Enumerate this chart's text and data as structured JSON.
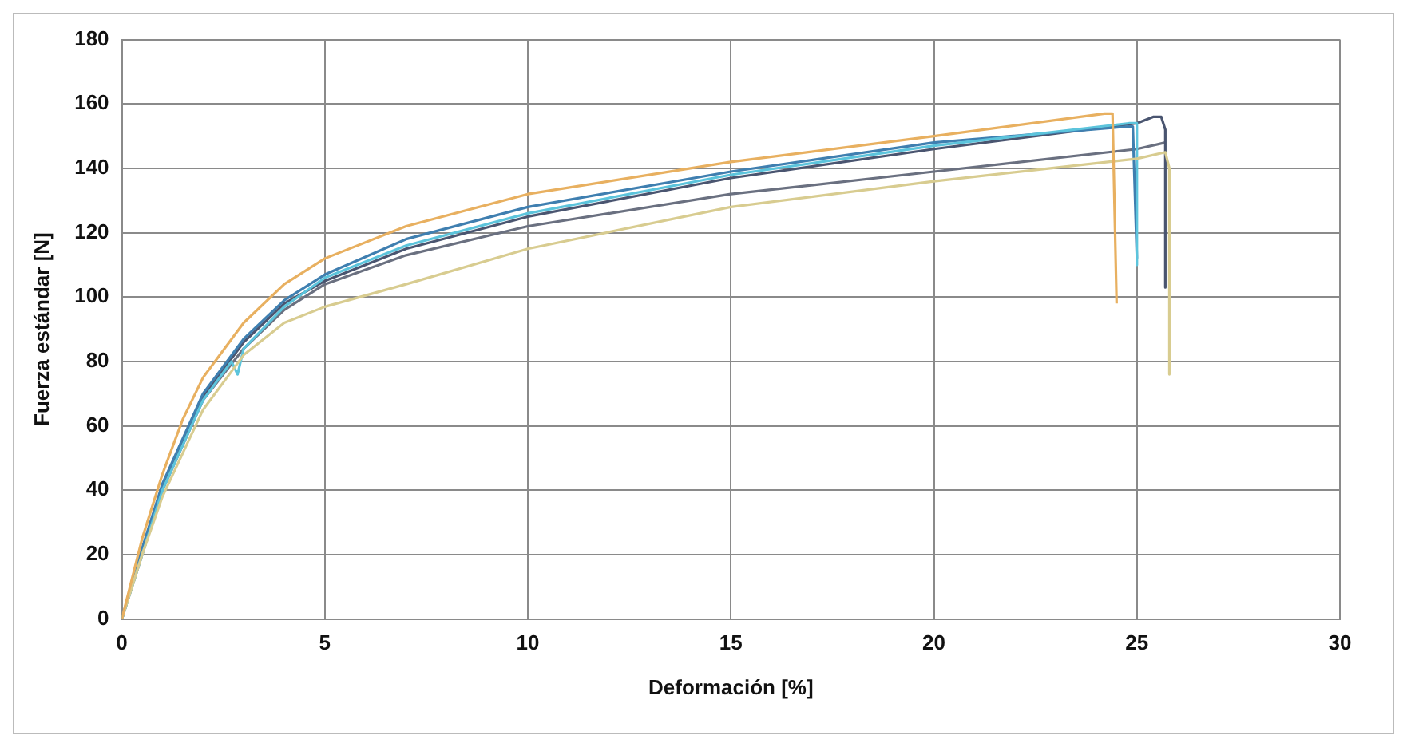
{
  "chart_data": {
    "type": "line",
    "xlabel": "Deformación [%]",
    "ylabel": "Fuerza estándar [N]",
    "xlim": [
      0,
      30
    ],
    "xticks": [
      0,
      5,
      10,
      15,
      20,
      25,
      30
    ],
    "ylim": [
      0,
      180
    ],
    "yticks": [
      0,
      20,
      40,
      60,
      80,
      100,
      120,
      140,
      160,
      180
    ],
    "grid": true,
    "legend": false,
    "marker": "none",
    "line_style": "solid",
    "series": [
      {
        "color": "#e8b060",
        "x": [
          0,
          0.5,
          1,
          1.5,
          2,
          3,
          4,
          5,
          7,
          10,
          15,
          20,
          24.2,
          24.4,
          24.5
        ],
        "values": [
          0,
          25,
          45,
          62,
          75,
          92,
          104,
          112,
          122,
          132,
          142,
          150,
          157,
          157,
          98
        ]
      },
      {
        "color": "#d8cc90",
        "x": [
          0,
          0.5,
          1,
          2,
          3,
          4,
          5,
          7,
          10,
          15,
          20,
          25,
          25.7,
          25.8,
          25.8
        ],
        "values": [
          0,
          20,
          38,
          65,
          82,
          92,
          97,
          104,
          115,
          128,
          136,
          143,
          145,
          140,
          76
        ]
      },
      {
        "color": "#5cc4dc",
        "x": [
          0,
          0.5,
          1,
          2,
          2.7,
          2.85,
          3,
          4,
          5,
          7,
          10,
          15,
          20,
          24.8,
          25,
          25
        ],
        "values": [
          0,
          20,
          40,
          68,
          80,
          76,
          84,
          97,
          106,
          116,
          126,
          138,
          147,
          154,
          154,
          110
        ]
      },
      {
        "color": "#3f7fb0",
        "x": [
          0,
          0.5,
          1,
          2,
          3,
          4,
          5,
          7,
          10,
          15,
          20,
          24.8,
          24.9,
          25
        ],
        "values": [
          0,
          22,
          42,
          70,
          87,
          99,
          107,
          118,
          128,
          139,
          148,
          153,
          153,
          112
        ]
      },
      {
        "color": "#4a5570",
        "x": [
          0,
          0.5,
          1,
          2,
          3,
          4,
          5,
          7,
          10,
          15,
          20,
          25,
          25.4,
          25.6,
          25.7,
          25.7
        ],
        "values": [
          0,
          21,
          41,
          69,
          86,
          98,
          105,
          115,
          125,
          137,
          146,
          154,
          156,
          156,
          152,
          103
        ]
      },
      {
        "color": "#6a7080",
        "x": [
          0,
          0.5,
          1,
          2,
          3,
          4,
          5,
          7,
          10,
          15,
          20,
          25,
          25.7
        ],
        "values": [
          0,
          20,
          40,
          68,
          84,
          96,
          104,
          113,
          122,
          132,
          139,
          146,
          148
        ]
      }
    ]
  }
}
